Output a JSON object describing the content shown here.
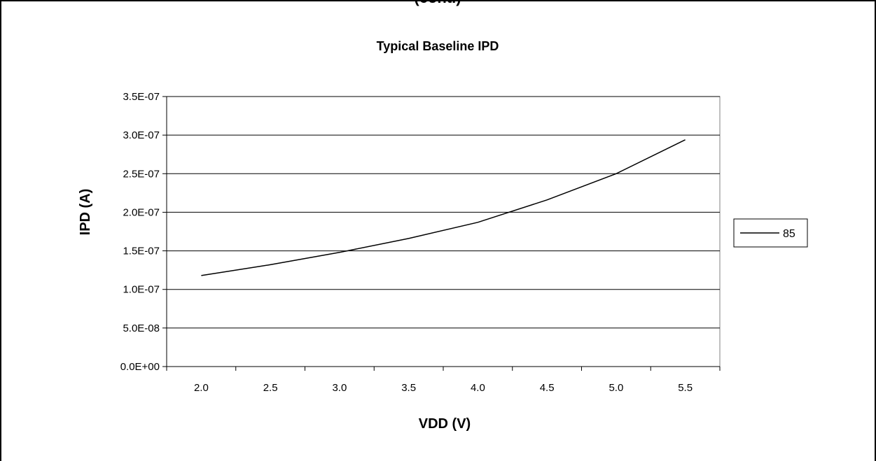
{
  "clipped_header": "(cont.)",
  "chart_data": {
    "type": "line",
    "title": "Typical Baseline IPD",
    "xlabel": "VDD (V)",
    "ylabel": "IPD (A)",
    "categories": [
      "2.0",
      "2.5",
      "3.0",
      "3.5",
      "4.0",
      "4.5",
      "5.0",
      "5.5"
    ],
    "y_ticks": [
      "0.0E+00",
      "5.0E-08",
      "1.0E-07",
      "1.5E-07",
      "2.0E-07",
      "2.5E-07",
      "3.0E-07",
      "3.5E-07"
    ],
    "ylim": [
      0,
      3.5e-07
    ],
    "grid": true,
    "legend_position": "right",
    "series": [
      {
        "name": "85",
        "color": "#000000",
        "values": [
          1.18e-07,
          1.32e-07,
          1.48e-07,
          1.66e-07,
          1.87e-07,
          2.16e-07,
          2.5e-07,
          2.94e-07
        ]
      }
    ]
  }
}
